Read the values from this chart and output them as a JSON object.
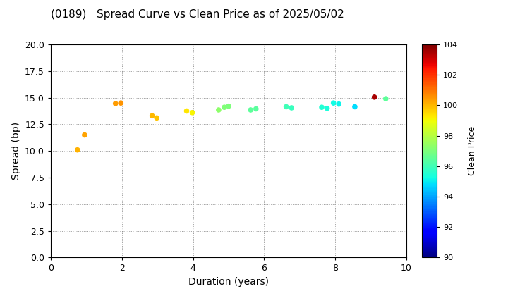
{
  "title": "(0189)   Spread Curve vs Clean Price as of 2025/05/02",
  "xlabel": "Duration (years)",
  "ylabel": "Spread (bp)",
  "colorbar_label": "Clean Price",
  "xlim": [
    0,
    10
  ],
  "ylim": [
    0.0,
    20.0
  ],
  "yticks": [
    0.0,
    2.5,
    5.0,
    7.5,
    10.0,
    12.5,
    15.0,
    17.5,
    20.0
  ],
  "xticks": [
    0,
    2,
    4,
    6,
    8,
    10
  ],
  "cmap_min": 90,
  "cmap_max": 104,
  "cbar_ticks": [
    90,
    92,
    94,
    96,
    98,
    100,
    102,
    104
  ],
  "points": [
    {
      "duration": 0.75,
      "spread": 10.1,
      "price": 100.1
    },
    {
      "duration": 0.95,
      "spread": 11.5,
      "price": 100.3
    },
    {
      "duration": 1.82,
      "spread": 14.45,
      "price": 100.4
    },
    {
      "duration": 1.97,
      "spread": 14.5,
      "price": 100.5
    },
    {
      "duration": 2.85,
      "spread": 13.3,
      "price": 100.0
    },
    {
      "duration": 2.98,
      "spread": 13.1,
      "price": 99.8
    },
    {
      "duration": 3.82,
      "spread": 13.75,
      "price": 99.3
    },
    {
      "duration": 3.98,
      "spread": 13.6,
      "price": 99.1
    },
    {
      "duration": 4.72,
      "spread": 13.85,
      "price": 97.3
    },
    {
      "duration": 4.88,
      "spread": 14.1,
      "price": 97.1
    },
    {
      "duration": 5.0,
      "spread": 14.2,
      "price": 97.0
    },
    {
      "duration": 5.62,
      "spread": 13.85,
      "price": 96.5
    },
    {
      "duration": 5.77,
      "spread": 13.95,
      "price": 96.4
    },
    {
      "duration": 6.62,
      "spread": 14.15,
      "price": 96.0
    },
    {
      "duration": 6.77,
      "spread": 14.05,
      "price": 95.9
    },
    {
      "duration": 7.62,
      "spread": 14.1,
      "price": 95.5
    },
    {
      "duration": 7.77,
      "spread": 14.0,
      "price": 95.4
    },
    {
      "duration": 7.95,
      "spread": 14.5,
      "price": 95.2
    },
    {
      "duration": 8.1,
      "spread": 14.4,
      "price": 95.1
    },
    {
      "duration": 8.55,
      "spread": 14.15,
      "price": 94.8
    },
    {
      "duration": 9.1,
      "spread": 15.05,
      "price": 103.5
    },
    {
      "duration": 9.42,
      "spread": 14.9,
      "price": 96.5
    }
  ]
}
